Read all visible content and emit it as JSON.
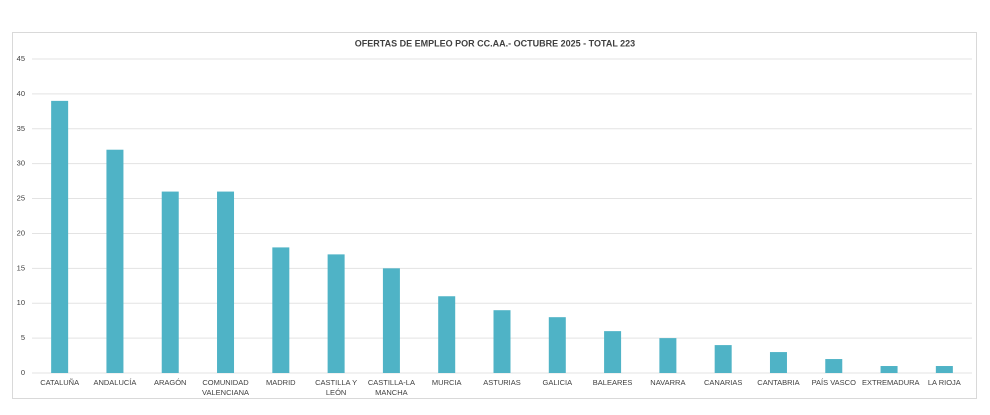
{
  "chart_data": {
    "type": "bar",
    "title": "OFERTAS DE EMPLEO POR CC.AA.- OCTUBRE 2025 - TOTAL 223",
    "categories": [
      "CATALUÑA",
      "ANDALUCÍA",
      "ARAGÓN",
      "COMUNIDAD VALENCIANA",
      "MADRID",
      "CASTILLA Y LEÓN",
      "CASTILLA-LA MANCHA",
      "MURCIA",
      "ASTURIAS",
      "GALICIA",
      "BALEARES",
      "NAVARRA",
      "CANARIAS",
      "CANTABRIA",
      "PAÍS VASCO",
      "EXTREMADURA",
      "LA RIOJA"
    ],
    "values": [
      39,
      32,
      26,
      26,
      18,
      17,
      15,
      11,
      9,
      8,
      6,
      5,
      4,
      3,
      2,
      1,
      1
    ],
    "color": "#4fb3c6",
    "ylim": [
      0,
      45
    ],
    "yticks": [
      0,
      5,
      10,
      15,
      20,
      25,
      30,
      35,
      40,
      45
    ],
    "grid": true
  }
}
